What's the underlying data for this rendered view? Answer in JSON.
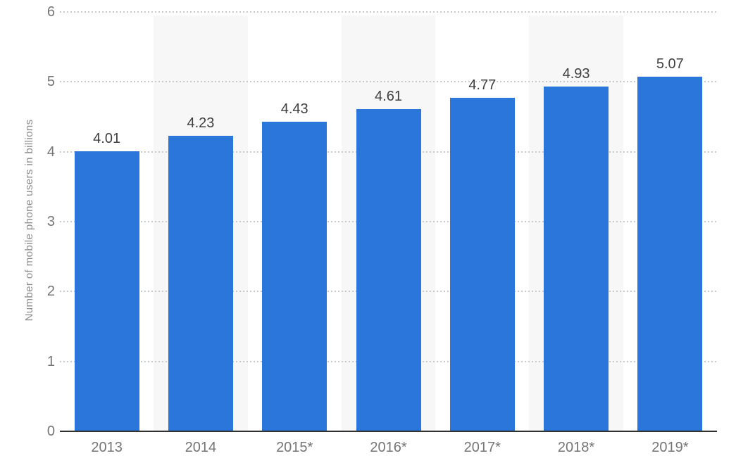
{
  "chart_data": {
    "type": "bar",
    "title": "",
    "xlabel": "",
    "ylabel": "Number of mobile phone users in billions",
    "categories": [
      "2013",
      "2014",
      "2015*",
      "2016*",
      "2017*",
      "2018*",
      "2019*"
    ],
    "values": [
      4.01,
      4.23,
      4.43,
      4.61,
      4.77,
      4.93,
      5.07
    ],
    "value_labels": [
      "4.01",
      "4.23",
      "4.43",
      "4.61",
      "4.77",
      "4.93",
      "5.07"
    ],
    "ylim": [
      0,
      6
    ],
    "yticks": [
      0,
      1,
      2,
      3,
      4,
      5,
      6
    ],
    "grid": "horizontal-dotted",
    "legend": "none",
    "striped_column_indexes": [
      1,
      3,
      5
    ],
    "colors": {
      "bar": "#2b76db",
      "column_stripe": "#f7f7f7",
      "gridline": "#c9c9c9",
      "axis_line": "#333333",
      "tick_label": "#757575",
      "value_label": "#3f3f3f",
      "axis_title": "#8c8c8c",
      "background": "#ffffff"
    }
  }
}
